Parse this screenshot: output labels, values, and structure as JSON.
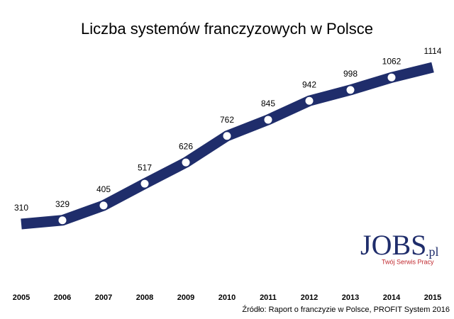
{
  "chart_data": {
    "type": "line",
    "title": "Liczba systemów franczyzowych w Polsce",
    "categories": [
      "2005",
      "2006",
      "2007",
      "2008",
      "2009",
      "2010",
      "2011",
      "2012",
      "2013",
      "2014",
      "2015"
    ],
    "series": [
      {
        "name": "Liczba systemów",
        "color": "#1f2d6b",
        "values": [
          310,
          329,
          405,
          517,
          626,
          762,
          845,
          942,
          998,
          1062,
          1114
        ]
      }
    ],
    "source": "Źródło: Raport o franczyzie w Polsce, PROFIT System 2016"
  },
  "logo": {
    "name": "JOBS",
    "domain": ".pl",
    "tagline": "Twój Serwis Pracy"
  }
}
